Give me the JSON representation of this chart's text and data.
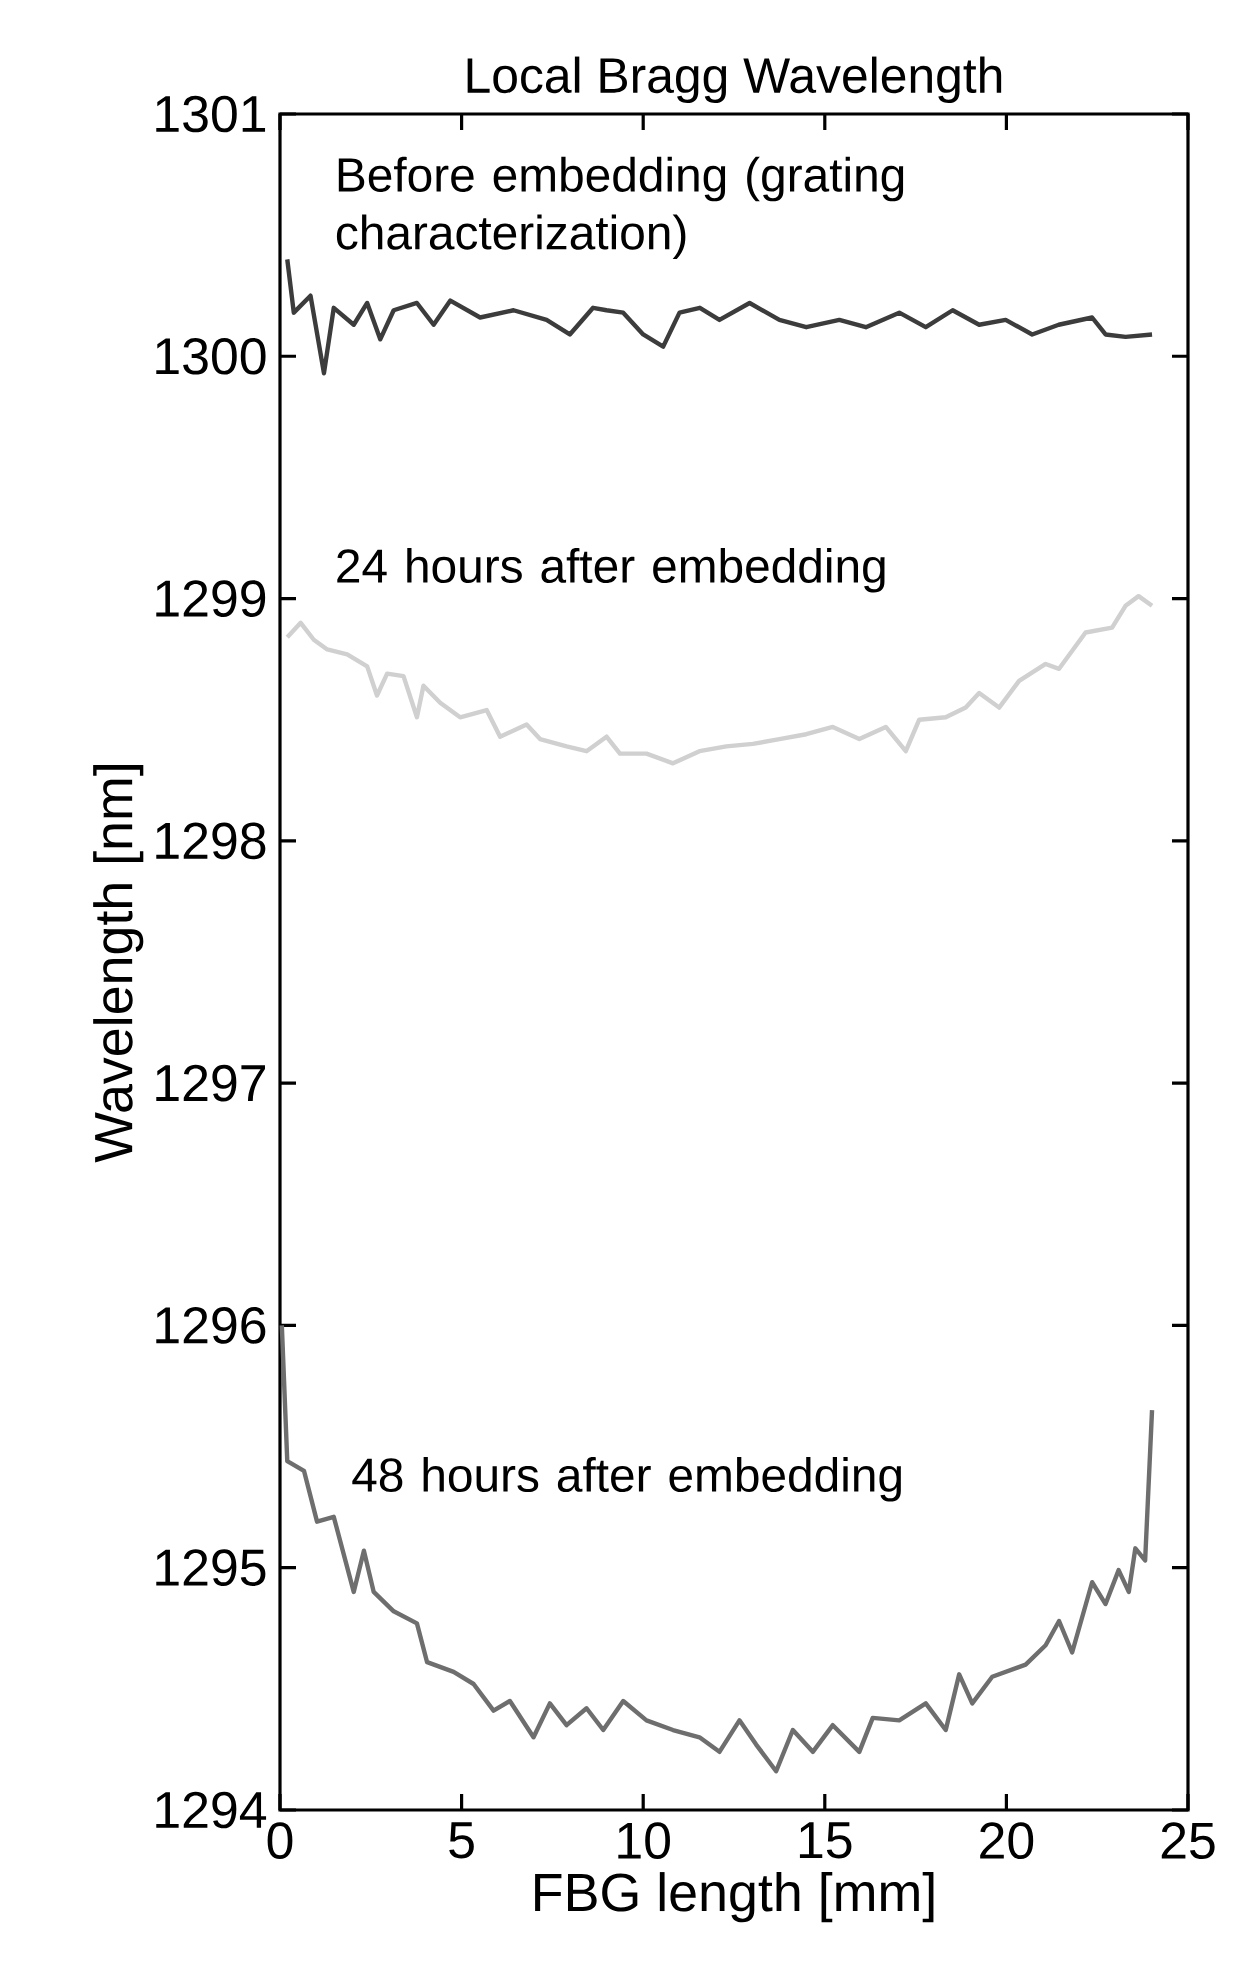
{
  "chart_data": {
    "type": "line",
    "title": "Local Bragg Wavelength",
    "xlabel": "FBG length [mm]",
    "ylabel": "Wavelength [nm]",
    "xlim": [
      0,
      25
    ],
    "ylim": [
      1294,
      1301
    ],
    "xticks": [
      0,
      5,
      10,
      15,
      20,
      25
    ],
    "yticks": [
      1294,
      1295,
      1296,
      1297,
      1298,
      1299,
      1300,
      1301
    ],
    "marker": "none",
    "line_style": "solid",
    "series": [
      {
        "name": "Before embedding (grating characterization)",
        "color": "#3c3c3c",
        "x": [
          0.2,
          0.38,
          0.84,
          1.21,
          1.48,
          2.03,
          2.4,
          2.76,
          3.13,
          3.77,
          4.23,
          4.69,
          5.51,
          6.43,
          7.34,
          7.98,
          8.62,
          8.99,
          9.45,
          10.0,
          10.55,
          11.0,
          11.56,
          12.1,
          12.93,
          13.75,
          14.49,
          15.4,
          16.13,
          17.05,
          17.78,
          18.52,
          19.25,
          19.98,
          20.71,
          21.44,
          22.36,
          22.73,
          23.28,
          24.01
        ],
        "values": [
          1300.4,
          1300.18,
          1300.25,
          1299.93,
          1300.2,
          1300.13,
          1300.22,
          1300.07,
          1300.19,
          1300.22,
          1300.13,
          1300.23,
          1300.16,
          1300.19,
          1300.15,
          1300.09,
          1300.2,
          1300.19,
          1300.18,
          1300.09,
          1300.04,
          1300.18,
          1300.2,
          1300.15,
          1300.22,
          1300.15,
          1300.12,
          1300.15,
          1300.12,
          1300.18,
          1300.12,
          1300.19,
          1300.13,
          1300.15,
          1300.09,
          1300.13,
          1300.16,
          1300.09,
          1300.08,
          1300.09
        ]
      },
      {
        "name": "24 hours after embedding",
        "color": "#d0d0d0",
        "x": [
          0.2,
          0.57,
          0.93,
          1.3,
          1.85,
          2.4,
          2.67,
          2.95,
          3.4,
          3.77,
          3.95,
          4.41,
          4.96,
          5.69,
          6.06,
          6.79,
          7.16,
          7.89,
          8.44,
          8.99,
          9.36,
          10.09,
          10.82,
          11.55,
          12.29,
          13.02,
          13.75,
          14.49,
          15.22,
          15.95,
          16.68,
          17.23,
          17.6,
          18.33,
          18.88,
          19.25,
          19.8,
          20.35,
          21.08,
          21.45,
          22.18,
          22.91,
          23.28,
          23.64,
          24.01
        ],
        "values": [
          1298.84,
          1298.9,
          1298.83,
          1298.79,
          1298.77,
          1298.72,
          1298.6,
          1298.69,
          1298.68,
          1298.51,
          1298.64,
          1298.57,
          1298.51,
          1298.54,
          1298.43,
          1298.48,
          1298.42,
          1298.39,
          1298.37,
          1298.43,
          1298.36,
          1298.36,
          1298.32,
          1298.37,
          1298.39,
          1298.4,
          1298.42,
          1298.44,
          1298.47,
          1298.42,
          1298.47,
          1298.37,
          1298.5,
          1298.51,
          1298.55,
          1298.61,
          1298.55,
          1298.66,
          1298.73,
          1298.71,
          1298.86,
          1298.88,
          1298.97,
          1299.01,
          1298.97
        ]
      },
      {
        "name": "48 hours after embedding",
        "color": "#6e6e6e",
        "x": [
          0.05,
          0.2,
          0.66,
          1.02,
          1.48,
          2.03,
          2.31,
          2.58,
          3.13,
          3.77,
          4.05,
          4.78,
          5.33,
          5.88,
          6.33,
          6.98,
          7.43,
          7.89,
          8.44,
          8.9,
          9.45,
          10.09,
          10.82,
          11.55,
          12.1,
          12.65,
          13.11,
          13.66,
          14.12,
          14.67,
          15.22,
          15.95,
          16.32,
          17.05,
          17.78,
          18.33,
          18.7,
          19.06,
          19.61,
          20.53,
          21.08,
          21.45,
          21.81,
          22.36,
          22.73,
          23.09,
          23.37,
          23.55,
          23.82,
          24.01
        ],
        "values": [
          1296.0,
          1295.44,
          1295.4,
          1295.19,
          1295.21,
          1294.9,
          1295.07,
          1294.9,
          1294.82,
          1294.77,
          1294.61,
          1294.57,
          1294.52,
          1294.41,
          1294.45,
          1294.3,
          1294.44,
          1294.35,
          1294.42,
          1294.33,
          1294.45,
          1294.37,
          1294.33,
          1294.3,
          1294.24,
          1294.37,
          1294.27,
          1294.16,
          1294.33,
          1294.24,
          1294.35,
          1294.24,
          1294.38,
          1294.37,
          1294.44,
          1294.33,
          1294.56,
          1294.44,
          1294.55,
          1294.6,
          1294.68,
          1294.78,
          1294.65,
          1294.94,
          1294.85,
          1294.99,
          1294.9,
          1295.08,
          1295.03,
          1295.65
        ]
      }
    ]
  }
}
